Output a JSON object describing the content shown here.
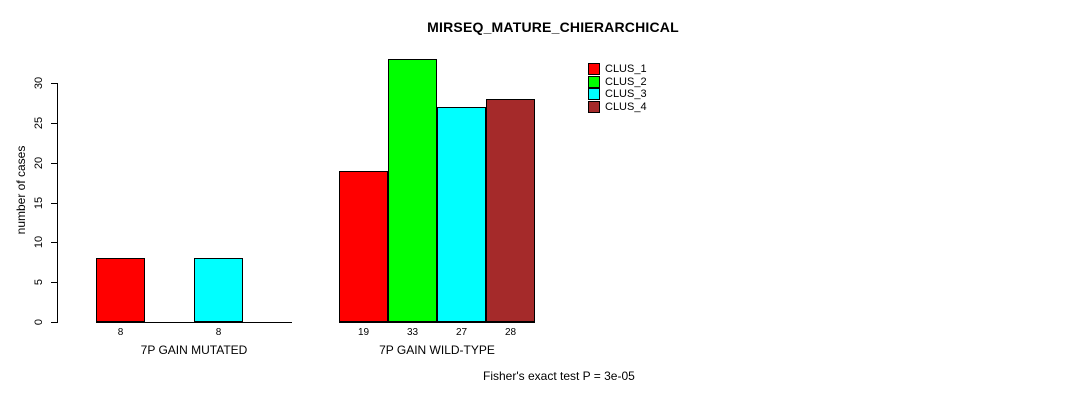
{
  "chart_data": {
    "type": "bar",
    "title": "MIRSEQ_MATURE_CHIERARCHICAL",
    "ylabel": "number of cases",
    "xlabel": "",
    "ylim": [
      0,
      33
    ],
    "yticks": [
      0,
      5,
      10,
      15,
      20,
      25,
      30
    ],
    "grid": false,
    "legend_position": "top-right",
    "series_names": [
      "CLUS_1",
      "CLUS_2",
      "CLUS_3",
      "CLUS_4"
    ],
    "series_colors": [
      "#ff0000",
      "#00ff00",
      "#00ffff",
      "#a52a2a"
    ],
    "categories": [
      "7P GAIN MUTATED",
      "7P GAIN WILD-TYPE"
    ],
    "groups": [
      {
        "label": "7P GAIN MUTATED",
        "values": [
          8,
          null,
          8,
          null
        ],
        "value_labels": [
          "8",
          "",
          "8",
          ""
        ]
      },
      {
        "label": "7P GAIN WILD-TYPE",
        "values": [
          19,
          33,
          27,
          28
        ],
        "value_labels": [
          "19",
          "33",
          "27",
          "28"
        ]
      }
    ],
    "annotation": "Fisher's exact test P = 3e-05"
  }
}
